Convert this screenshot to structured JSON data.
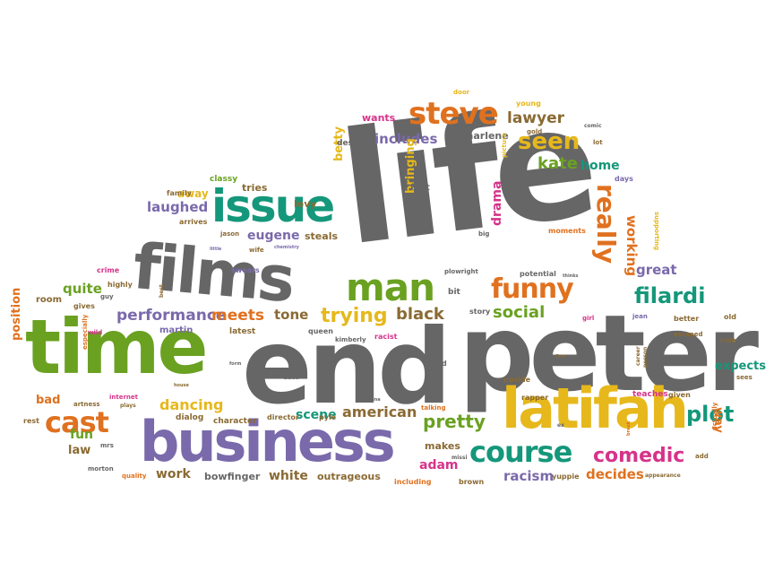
{
  "palette": {
    "gray": "#666666",
    "green": "#6aa121",
    "orange": "#e0711f",
    "purple": "#7a6aab",
    "yellow": "#e6b81b",
    "teal": "#14977a",
    "pink": "#d6338a",
    "brown": "#8a6a33"
  },
  "words": [
    {
      "text": "life",
      "color": "#666666"
    },
    {
      "text": "end",
      "color": "#666666"
    },
    {
      "text": "peter",
      "color": "#666666"
    },
    {
      "text": "time",
      "color": "#6aa121"
    },
    {
      "text": "films",
      "color": "#666666"
    },
    {
      "text": "business",
      "color": "#7a6aab"
    },
    {
      "text": "latifah",
      "color": "#e6b81b"
    },
    {
      "text": "issue",
      "color": "#14977a"
    },
    {
      "text": "man",
      "color": "#6aa121"
    },
    {
      "text": "steve",
      "color": "#e0711f"
    },
    {
      "text": "course",
      "color": "#14977a"
    },
    {
      "text": "cast",
      "color": "#e0711f"
    },
    {
      "text": "funny",
      "color": "#e0711f"
    },
    {
      "text": "really",
      "color": "#e0711f"
    },
    {
      "text": "seen",
      "color": "#e6b81b"
    },
    {
      "text": "filardi",
      "color": "#14977a"
    },
    {
      "text": "trying",
      "color": "#e6b81b"
    },
    {
      "text": "plot",
      "color": "#14977a"
    },
    {
      "text": "comedic",
      "color": "#d6338a"
    },
    {
      "text": "pretty",
      "color": "#6aa121"
    },
    {
      "text": "performance",
      "color": "#7a6aab"
    },
    {
      "text": "meets",
      "color": "#e0711f"
    },
    {
      "text": "dancing",
      "color": "#e6b81b"
    },
    {
      "text": "black",
      "color": "#8a6a33"
    },
    {
      "text": "american",
      "color": "#8a6a33"
    },
    {
      "text": "social",
      "color": "#6aa121"
    },
    {
      "text": "kate",
      "color": "#6aa121"
    },
    {
      "text": "lawyer",
      "color": "#8a6a33"
    },
    {
      "text": "includes",
      "color": "#7a6aab"
    },
    {
      "text": "laughed",
      "color": "#7a6aab"
    },
    {
      "text": "eugene",
      "color": "#7a6aab"
    },
    {
      "text": "tone",
      "color": "#8a6a33"
    },
    {
      "text": "quite",
      "color": "#6aa121"
    },
    {
      "text": "scene",
      "color": "#14977a"
    },
    {
      "text": "drama",
      "color": "#d6338a"
    },
    {
      "text": "working",
      "color": "#e0711f"
    },
    {
      "text": "great",
      "color": "#7a6aab"
    },
    {
      "text": "racism",
      "color": "#7a6aab"
    },
    {
      "text": "decides",
      "color": "#e0711f"
    },
    {
      "text": "work",
      "color": "#8a6a33"
    },
    {
      "text": "white",
      "color": "#8a6a33"
    },
    {
      "text": "adam",
      "color": "#d6338a"
    },
    {
      "text": "bowfinger",
      "color": "#666666"
    },
    {
      "text": "outrageous",
      "color": "#8a6a33"
    },
    {
      "text": "bringing",
      "color": "#e6b81b"
    },
    {
      "text": "betty",
      "color": "#e6b81b"
    },
    {
      "text": "tries",
      "color": "#8a6a33"
    },
    {
      "text": "away",
      "color": "#e6b81b"
    },
    {
      "text": "home",
      "color": "#14977a"
    },
    {
      "text": "fun",
      "color": "#6aa121"
    },
    {
      "text": "bad",
      "color": "#e0711f"
    },
    {
      "text": "law",
      "color": "#8a6a33"
    },
    {
      "text": "position",
      "color": "#e0711f"
    },
    {
      "text": "expects",
      "color": "#14977a"
    },
    {
      "text": "way",
      "color": "#e0711f"
    },
    {
      "text": "makes",
      "color": "#8a6a33"
    },
    {
      "text": "levy",
      "color": "#8a6a33"
    },
    {
      "text": "steals",
      "color": "#8a6a33"
    },
    {
      "text": "wants",
      "color": "#d6338a"
    },
    {
      "text": "charlene",
      "color": "#666666"
    },
    {
      "text": "despite",
      "color": "#666666"
    },
    {
      "text": "fact",
      "color": "#666666"
    },
    {
      "text": "classy",
      "color": "#6aa121"
    },
    {
      "text": "family",
      "color": "#8a6a33"
    },
    {
      "text": "crime",
      "color": "#d6338a"
    },
    {
      "text": "room",
      "color": "#8a6a33"
    },
    {
      "text": "martin",
      "color": "#7a6aab"
    },
    {
      "text": "latest",
      "color": "#8a6a33"
    },
    {
      "text": "queen",
      "color": "#666666"
    },
    {
      "text": "racist",
      "color": "#d6338a"
    },
    {
      "text": "kimberly",
      "color": "#666666"
    },
    {
      "text": "story",
      "color": "#666666"
    },
    {
      "text": "upside",
      "color": "#8a6a33"
    },
    {
      "text": "hard",
      "color": "#666666"
    },
    {
      "text": "rapper",
      "color": "#8a6a33"
    },
    {
      "text": "teaches",
      "color": "#d6338a"
    },
    {
      "text": "given",
      "color": "#8a6a33"
    },
    {
      "text": "director",
      "color": "#8a6a33"
    },
    {
      "text": "character",
      "color": "#8a6a33"
    },
    {
      "text": "dialog",
      "color": "#8a6a33"
    },
    {
      "text": "quality",
      "color": "#e0711f"
    },
    {
      "text": "morton",
      "color": "#666666"
    },
    {
      "text": "including",
      "color": "#e0711f"
    },
    {
      "text": "brown",
      "color": "#8a6a33"
    },
    {
      "text": "yuppie",
      "color": "#8a6a33"
    },
    {
      "text": "add",
      "color": "#8a6a33"
    },
    {
      "text": "actually",
      "color": "#e0711f"
    },
    {
      "text": "appearance",
      "color": "#8a6a33"
    },
    {
      "text": "old",
      "color": "#8a6a33"
    },
    {
      "text": "role",
      "color": "#8a6a33"
    },
    {
      "text": "better",
      "color": "#8a6a33"
    },
    {
      "text": "jean",
      "color": "#7a6aab"
    },
    {
      "text": "girl",
      "color": "#d6338a"
    },
    {
      "text": "potential",
      "color": "#666666"
    },
    {
      "text": "bit",
      "color": "#666666"
    },
    {
      "text": "plowright",
      "color": "#666666"
    },
    {
      "text": "moments",
      "color": "#e0711f"
    },
    {
      "text": "big",
      "color": "#666666"
    },
    {
      "text": "supporting",
      "color": "#e6b81b"
    },
    {
      "text": "days",
      "color": "#7a6aab"
    },
    {
      "text": "lot",
      "color": "#8a6a33"
    },
    {
      "text": "large",
      "color": "#666666"
    },
    {
      "text": "picture",
      "color": "#e6b81b"
    },
    {
      "text": "gold",
      "color": "#8a6a33"
    },
    {
      "text": "young",
      "color": "#e6b81b"
    },
    {
      "text": "door",
      "color": "#e6b81b"
    },
    {
      "text": "comic",
      "color": "#666666"
    },
    {
      "text": "swears",
      "color": "#7a6aab"
    },
    {
      "text": "jason",
      "color": "#8a6a33"
    },
    {
      "text": "wife",
      "color": "#8a6a33"
    },
    {
      "text": "arrives",
      "color": "#8a6a33"
    },
    {
      "text": "highly",
      "color": "#8a6a33"
    },
    {
      "text": "gives",
      "color": "#8a6a33"
    },
    {
      "text": "guy",
      "color": "#666666"
    },
    {
      "text": "wild",
      "color": "#d6338a"
    },
    {
      "text": "especially",
      "color": "#e0711f"
    },
    {
      "text": "internet",
      "color": "#d6338a"
    },
    {
      "text": "plays",
      "color": "#8a6a33"
    },
    {
      "text": "rest",
      "color": "#8a6a33"
    },
    {
      "text": "date",
      "color": "#666666"
    },
    {
      "text": "talking",
      "color": "#e0711f"
    },
    {
      "text": "mrs",
      "color": "#666666"
    },
    {
      "text": "pyle",
      "color": "#8a6a33"
    },
    {
      "text": "escaped",
      "color": "#8a6a33"
    },
    {
      "text": "sees",
      "color": "#8a6a33"
    },
    {
      "text": "career",
      "color": "#8a6a33"
    },
    {
      "text": "person",
      "color": "#8a6a33"
    },
    {
      "text": "best",
      "color": "#8a6a33"
    },
    {
      "text": "chemistry",
      "color": "#7a6aab"
    },
    {
      "text": "little",
      "color": "#7a6aab"
    },
    {
      "text": "form",
      "color": "#666666"
    },
    {
      "text": "house",
      "color": "#8a6a33"
    },
    {
      "text": "firm",
      "color": "#8a6a33"
    },
    {
      "text": "missi",
      "color": "#666666"
    },
    {
      "text": "ex",
      "color": "#666666"
    },
    {
      "text": "break",
      "color": "#e0711f"
    },
    {
      "text": "thinks",
      "color": "#666666"
    },
    {
      "text": "farina",
      "color": "#666666"
    },
    {
      "text": "artness",
      "color": "#8a6a33"
    }
  ]
}
